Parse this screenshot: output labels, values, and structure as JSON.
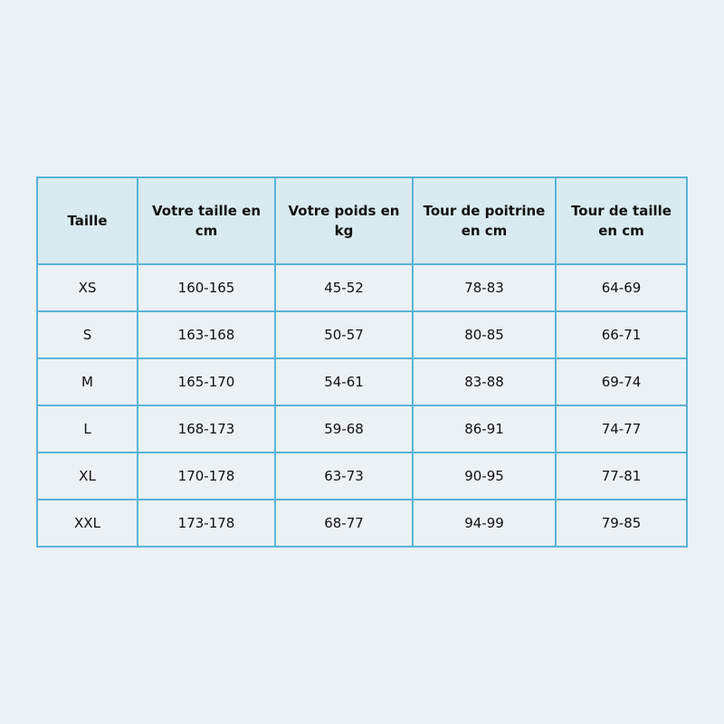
{
  "colors": {
    "background": "#ebf1f4",
    "header_bg": "#d9eaf0",
    "border": "#5cb3d6"
  },
  "headers": [
    "Taille",
    "Votre taille en cm",
    "Votre poids en kg",
    "Tour de poitrine en cm",
    "Tour de taille en cm"
  ],
  "rows": [
    [
      "XS",
      "160-165",
      "45-52",
      "78-83",
      "64-69"
    ],
    [
      "S",
      "163-168",
      "50-57",
      "80-85",
      "66-71"
    ],
    [
      "M",
      "165-170",
      "54-61",
      "83-88",
      "69-74"
    ],
    [
      "L",
      "168-173",
      "59-68",
      "86-91",
      "74-77"
    ],
    [
      "XL",
      "170-178",
      "63-73",
      "90-95",
      "77-81"
    ],
    [
      "XXL",
      "173-178",
      "68-77",
      "94-99",
      "79-85"
    ]
  ]
}
